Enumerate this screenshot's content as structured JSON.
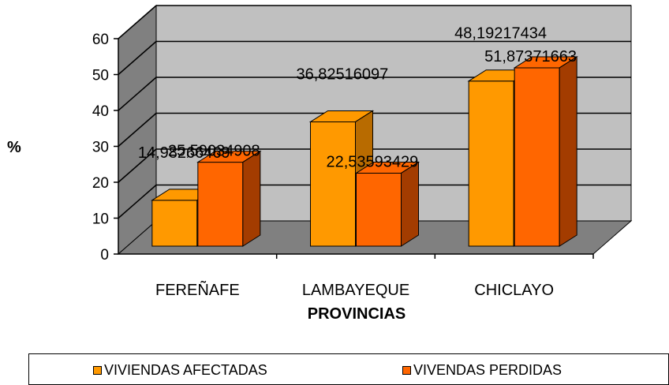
{
  "chart_data": {
    "type": "bar",
    "title": "",
    "xlabel": "PROVINCIAS",
    "ylabel": "%",
    "categories": [
      "FEREÑAFE",
      "LAMBAYEQUE",
      "CHICLAYO"
    ],
    "series": [
      {
        "name": "VIVIENDAS AFECTADAS",
        "values": [
          14.98266469,
          36.82516097,
          48.19217434
        ],
        "color": "#FF9900"
      },
      {
        "name": "VIVENDAS PERDIDAS",
        "values": [
          25.59034908,
          22.53593429,
          51.87371663
        ],
        "color": "#FF6600"
      }
    ],
    "data_labels": [
      [
        "14,98266469",
        "36,82516097",
        "48,19217434"
      ],
      [
        "25,59034908",
        "22,53593429",
        "51,87371663"
      ]
    ],
    "yticks": [
      0,
      10,
      20,
      30,
      40,
      50,
      60
    ],
    "ylim": [
      0,
      60
    ],
    "grid": true,
    "legend_position": "bottom",
    "style": "3d-column",
    "colors": {
      "wall": "#C0C0C0",
      "floor": "#808080",
      "afectadas_side": "#B86B00",
      "perdidas_side": "#A33C00"
    }
  }
}
